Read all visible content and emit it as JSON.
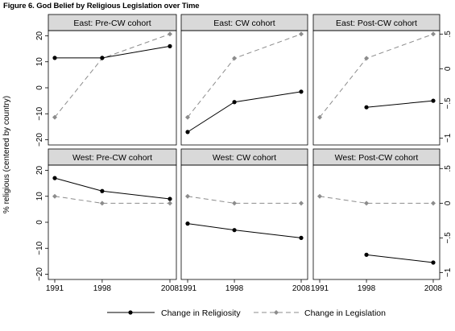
{
  "title": "Figure 6.  God Belief by Religious Legislation over Time",
  "colors": {
    "religiosity": "#000000",
    "legislation": "#8c8c8c",
    "strip_bg": "#d9d9d9",
    "frame": "#000000"
  },
  "chart_data": {
    "type": "line",
    "x": [
      1991,
      1998,
      2008
    ],
    "x_ticks": [
      "1991",
      "1998",
      "2008"
    ],
    "ylabel_left": "% religious (centered by country)",
    "ylim_left": [
      -22,
      22
    ],
    "yticks_left": [
      "20",
      "10",
      "0",
      "−10",
      "−20"
    ],
    "ylim_right": [
      -1.1,
      0.55
    ],
    "yticks_right": [
      ".5",
      "0",
      "−.5",
      "−1"
    ],
    "legend": {
      "placement": "bottom",
      "religiosity": "Change in Religiosity",
      "legislation": "Change in Legislation"
    },
    "panels": [
      {
        "title": "East: Pre-CW cohort",
        "religiosity": [
          11.5,
          11.5,
          16
        ],
        "legislation": [
          -0.7,
          0.15,
          0.5
        ]
      },
      {
        "title": "East: CW cohort",
        "religiosity": [
          -17,
          -5.5,
          -1.5
        ],
        "legislation": [
          -0.7,
          0.15,
          0.5
        ]
      },
      {
        "title": "East: Post-CW cohort",
        "religiosity": [
          null,
          -7.5,
          -5
        ],
        "legislation": [
          -0.7,
          0.15,
          0.5
        ]
      },
      {
        "title": "West: Pre-CW cohort",
        "religiosity": [
          17,
          12,
          9
        ],
        "legislation": [
          0.1,
          0,
          0
        ]
      },
      {
        "title": "West: CW cohort",
        "religiosity": [
          -0.5,
          -3,
          -6
        ],
        "legislation": [
          0.1,
          0,
          0
        ]
      },
      {
        "title": "West: Post-CW cohort",
        "religiosity": [
          null,
          -12.5,
          -15.5
        ],
        "legislation": [
          0.1,
          0,
          0
        ]
      }
    ]
  }
}
